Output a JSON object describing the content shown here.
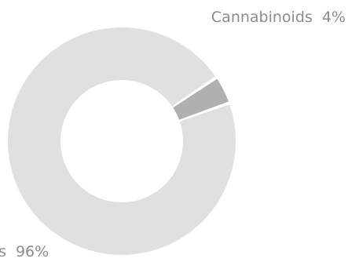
{
  "chart_data": {
    "type": "pie",
    "variant": "donut",
    "slices": [
      {
        "label": "Cannabinoids",
        "value": 4,
        "value_label": "4%",
        "color": "#b0b0b0"
      },
      {
        "label": "",
        "value": 96,
        "value_label": "96%",
        "partial_label_visible": "s",
        "color": "#e0e0e0"
      }
    ],
    "title": "",
    "legend": "none",
    "labels_outside": true,
    "label_color": "#8c8c8c"
  }
}
